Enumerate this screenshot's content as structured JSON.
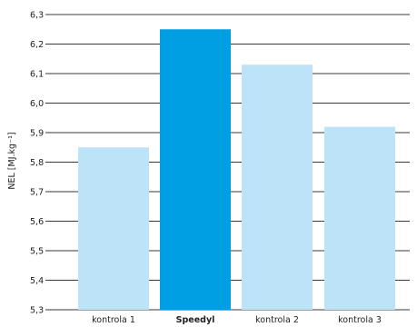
{
  "chart_data": {
    "type": "bar",
    "title": "",
    "xlabel": "",
    "ylabel": "NEL [MJ.kg⁻¹]",
    "categories": [
      "kontrola 1",
      "Speedyl",
      "kontrola 2",
      "kontrola 3"
    ],
    "values": [
      5.85,
      6.25,
      6.13,
      5.92
    ],
    "highlighted_category": "Speedyl",
    "ylim": [
      5.3,
      6.3
    ],
    "yticks": [
      "5,3",
      "5,4",
      "5,5",
      "5,6",
      "5,7",
      "5,8",
      "5,9",
      "6,0",
      "6,1",
      "6,2",
      "6,3"
    ],
    "grid": true,
    "legend": "none",
    "colors": {
      "bar": "#bde3f8",
      "highlight": "#009fe3",
      "grid": "#3a3a3a",
      "text": "#222222"
    }
  }
}
